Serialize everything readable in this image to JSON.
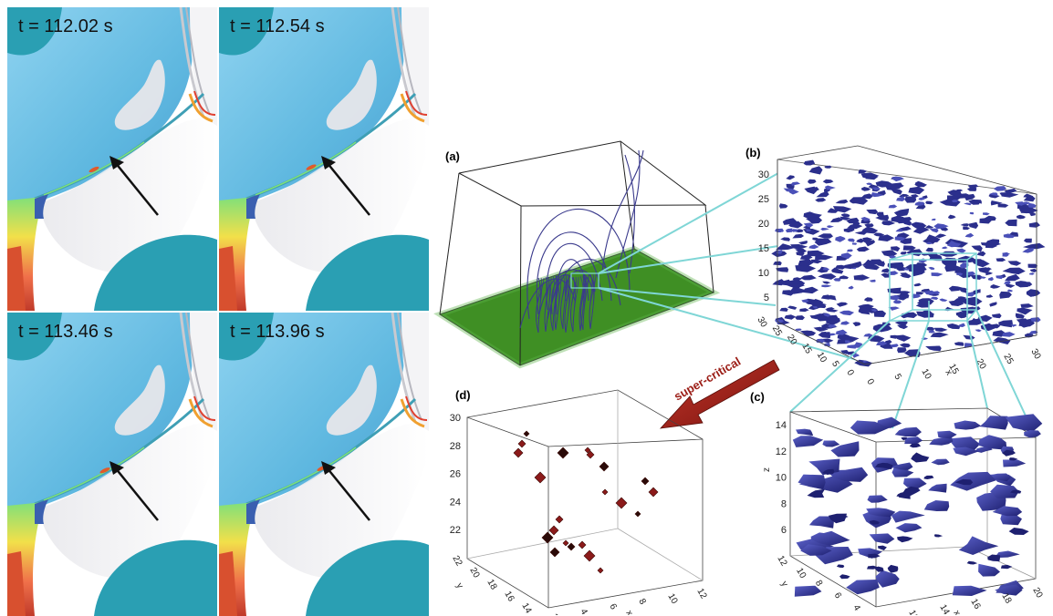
{
  "frames": [
    {
      "time": "t = 112.02 s"
    },
    {
      "time": "t = 112.54 s"
    },
    {
      "time": "t = 113.46 s"
    },
    {
      "time": "t = 113.96 s"
    }
  ],
  "panels": {
    "a": {
      "label": "(a)"
    },
    "b": {
      "label": "(b)",
      "z_ticks": [
        "5",
        "10",
        "15",
        "20",
        "25",
        "30"
      ],
      "y_ticks": [
        "0",
        "5",
        "10",
        "15",
        "20",
        "25",
        "30"
      ],
      "x_ticks": [
        "0",
        "5",
        "10",
        "15",
        "20",
        "25",
        "30"
      ],
      "x_axis": "x"
    },
    "c": {
      "label": "(c)",
      "z_ticks": [
        "6",
        "8",
        "10",
        "12",
        "14"
      ],
      "z_axis": "z",
      "y_ticks": [
        "4",
        "6",
        "8",
        "10",
        "12"
      ],
      "y_axis": "y",
      "x_ticks": [
        "10",
        "12",
        "14",
        "16",
        "18",
        "20"
      ],
      "x_axis": "x"
    },
    "d": {
      "label": "(d)",
      "z_ticks": [
        "22",
        "24",
        "26",
        "28",
        "30"
      ],
      "y_ticks": [
        "14",
        "16",
        "18",
        "20",
        "22"
      ],
      "y_axis": "y",
      "x_ticks": [
        "2",
        "4",
        "6",
        "8",
        "10",
        "12"
      ],
      "x_axis": "x"
    }
  },
  "arrow_label": "super-critical",
  "colors": {
    "sky": "#6fc3e8",
    "teal": "#2a9fb3",
    "field_green": "#3f8f24",
    "iso_blue": "#2b2f8c",
    "iso_red": "#8b1a1a",
    "connector": "#7fd6d6",
    "arrow": "#9b1c15"
  }
}
